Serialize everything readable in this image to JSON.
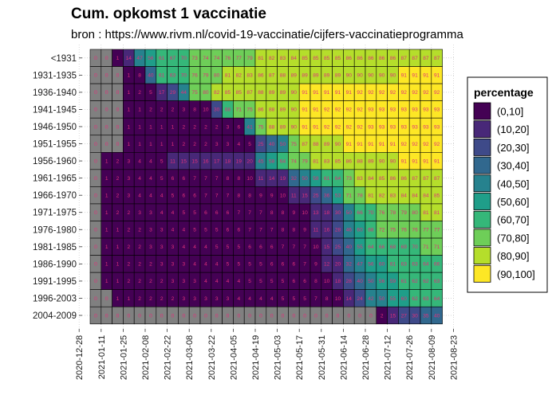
{
  "chart_data": {
    "type": "heatmap",
    "title": "Cum. opkomst 1 vaccinatie",
    "subtitle": "bron : https://www.rivm.nl/covid-19-vaccinatie/cijfers-vaccinatieprogramma",
    "xlabel": "",
    "ylabel": "",
    "x_ticks": [
      "2020-12-28",
      "2021-01-11",
      "2021-01-25",
      "2021-02-08",
      "2021-02-22",
      "2021-03-08",
      "2021-03-22",
      "2021-04-05",
      "2021-04-19",
      "2021-05-03",
      "2021-05-17",
      "2021-05-31",
      "2021-06-14",
      "2021-06-28",
      "2021-07-12",
      "2021-07-26",
      "2021-08-09",
      "2021-08-23"
    ],
    "weeks_start": "2021-01-04",
    "categories": [
      "<1931",
      "1931-1935",
      "1936-1940",
      "1941-1945",
      "1946-1950",
      "1951-1955",
      "1956-1960",
      "1961-1965",
      "1966-1970",
      "1971-1975",
      "1976-1980",
      "1981-1985",
      "1986-1990",
      "1991-1995",
      "1996-2003",
      "2004-2009"
    ],
    "values": [
      [
        0,
        0,
        1,
        14,
        47,
        56,
        61,
        67,
        70,
        73,
        74,
        74,
        76,
        77,
        79,
        81,
        82,
        83,
        84,
        85,
        85,
        85,
        85,
        86,
        86,
        86,
        86,
        86,
        87,
        87,
        87,
        87
      ],
      [
        0,
        0,
        0,
        1,
        8,
        40,
        61,
        63,
        70,
        76,
        79,
        80,
        81,
        82,
        83,
        86,
        87,
        88,
        89,
        89,
        89,
        89,
        89,
        90,
        90,
        90,
        90,
        90,
        91,
        91,
        91,
        91
      ],
      [
        0,
        0,
        0,
        1,
        2,
        5,
        17,
        29,
        44,
        75,
        80,
        82,
        85,
        85,
        87,
        88,
        89,
        89,
        90,
        91,
        91,
        91,
        91,
        91,
        92,
        92,
        92,
        92,
        92,
        92,
        92,
        92
      ],
      [
        0,
        0,
        0,
        1,
        1,
        2,
        2,
        2,
        3,
        8,
        10,
        30,
        68,
        71,
        75,
        86,
        88,
        89,
        90,
        91,
        91,
        92,
        92,
        92,
        92,
        93,
        93,
        93,
        93,
        93,
        93,
        93
      ],
      [
        0,
        0,
        0,
        1,
        1,
        1,
        1,
        1,
        2,
        2,
        2,
        2,
        3,
        6,
        41,
        75,
        88,
        89,
        90,
        91,
        91,
        92,
        92,
        92,
        92,
        93,
        93,
        93,
        93,
        93,
        93,
        93
      ],
      [
        0,
        0,
        0,
        1,
        1,
        1,
        1,
        1,
        2,
        2,
        2,
        3,
        3,
        4,
        5,
        25,
        40,
        50,
        75,
        87,
        88,
        89,
        90,
        91,
        91,
        91,
        91,
        91,
        92,
        92,
        92,
        92
      ],
      [
        0,
        1,
        2,
        3,
        4,
        4,
        5,
        11,
        15,
        15,
        16,
        17,
        18,
        19,
        20,
        45,
        58,
        64,
        74,
        79,
        81,
        83,
        85,
        86,
        88,
        89,
        90,
        90,
        91,
        91,
        91,
        91
      ],
      [
        0,
        1,
        2,
        3,
        4,
        4,
        5,
        6,
        6,
        7,
        7,
        7,
        8,
        8,
        10,
        11,
        14,
        19,
        32,
        50,
        58,
        61,
        64,
        73,
        83,
        84,
        85,
        86,
        86,
        87,
        87,
        87
      ],
      [
        0,
        1,
        2,
        3,
        4,
        4,
        4,
        5,
        6,
        6,
        7,
        7,
        7,
        8,
        8,
        9,
        9,
        10,
        11,
        15,
        25,
        36,
        53,
        71,
        78,
        81,
        82,
        83,
        84,
        84,
        84,
        85
      ],
      [
        0,
        1,
        2,
        2,
        3,
        3,
        4,
        4,
        5,
        5,
        6,
        6,
        6,
        7,
        7,
        7,
        8,
        8,
        9,
        10,
        13,
        18,
        30,
        50,
        66,
        70,
        76,
        78,
        79,
        80,
        81,
        81
      ],
      [
        0,
        1,
        1,
        2,
        2,
        3,
        3,
        4,
        4,
        5,
        5,
        5,
        6,
        6,
        7,
        7,
        7,
        8,
        8,
        9,
        11,
        16,
        28,
        46,
        60,
        68,
        72,
        75,
        76,
        76,
        77,
        77
      ],
      [
        0,
        1,
        1,
        2,
        2,
        3,
        3,
        3,
        4,
        4,
        4,
        5,
        5,
        5,
        6,
        6,
        6,
        7,
        7,
        7,
        10,
        15,
        25,
        40,
        55,
        64,
        66,
        68,
        69,
        70,
        71,
        71
      ],
      [
        0,
        1,
        1,
        2,
        2,
        2,
        3,
        3,
        3,
        4,
        4,
        4,
        5,
        5,
        5,
        5,
        6,
        6,
        6,
        7,
        9,
        12,
        20,
        32,
        47,
        56,
        60,
        61,
        63,
        63,
        64,
        66
      ],
      [
        0,
        1,
        1,
        2,
        2,
        2,
        2,
        3,
        3,
        3,
        4,
        4,
        4,
        4,
        5,
        5,
        5,
        5,
        6,
        6,
        8,
        10,
        18,
        28,
        40,
        50,
        56,
        59,
        61,
        62,
        62,
        63
      ],
      [
        0,
        0,
        1,
        1,
        2,
        2,
        2,
        2,
        3,
        3,
        3,
        3,
        3,
        4,
        4,
        4,
        4,
        5,
        5,
        5,
        7,
        8,
        10,
        14,
        24,
        42,
        50,
        55,
        60,
        62,
        63,
        64
      ],
      [
        0,
        0,
        0,
        0,
        0,
        0,
        0,
        0,
        0,
        0,
        0,
        0,
        0,
        0,
        0,
        0,
        0,
        0,
        0,
        0,
        0,
        0,
        0,
        0,
        0,
        0,
        2,
        15,
        27,
        30,
        35,
        40
      ]
    ],
    "legend": {
      "title": "percentage",
      "position": "right",
      "bins": [
        "(0,10]",
        "(10,20]",
        "(20,30]",
        "(30,40]",
        "(40,50]",
        "(50,60]",
        "(60,70]",
        "(70,80]",
        "(80,90]",
        "(90,100]"
      ],
      "colors": [
        "#440154",
        "#482878",
        "#3e4a89",
        "#31688e",
        "#26828e",
        "#1f9e89",
        "#35b779",
        "#6ece58",
        "#b5de2b",
        "#fde725"
      ],
      "zero_color": "#808080"
    },
    "grid": true
  }
}
